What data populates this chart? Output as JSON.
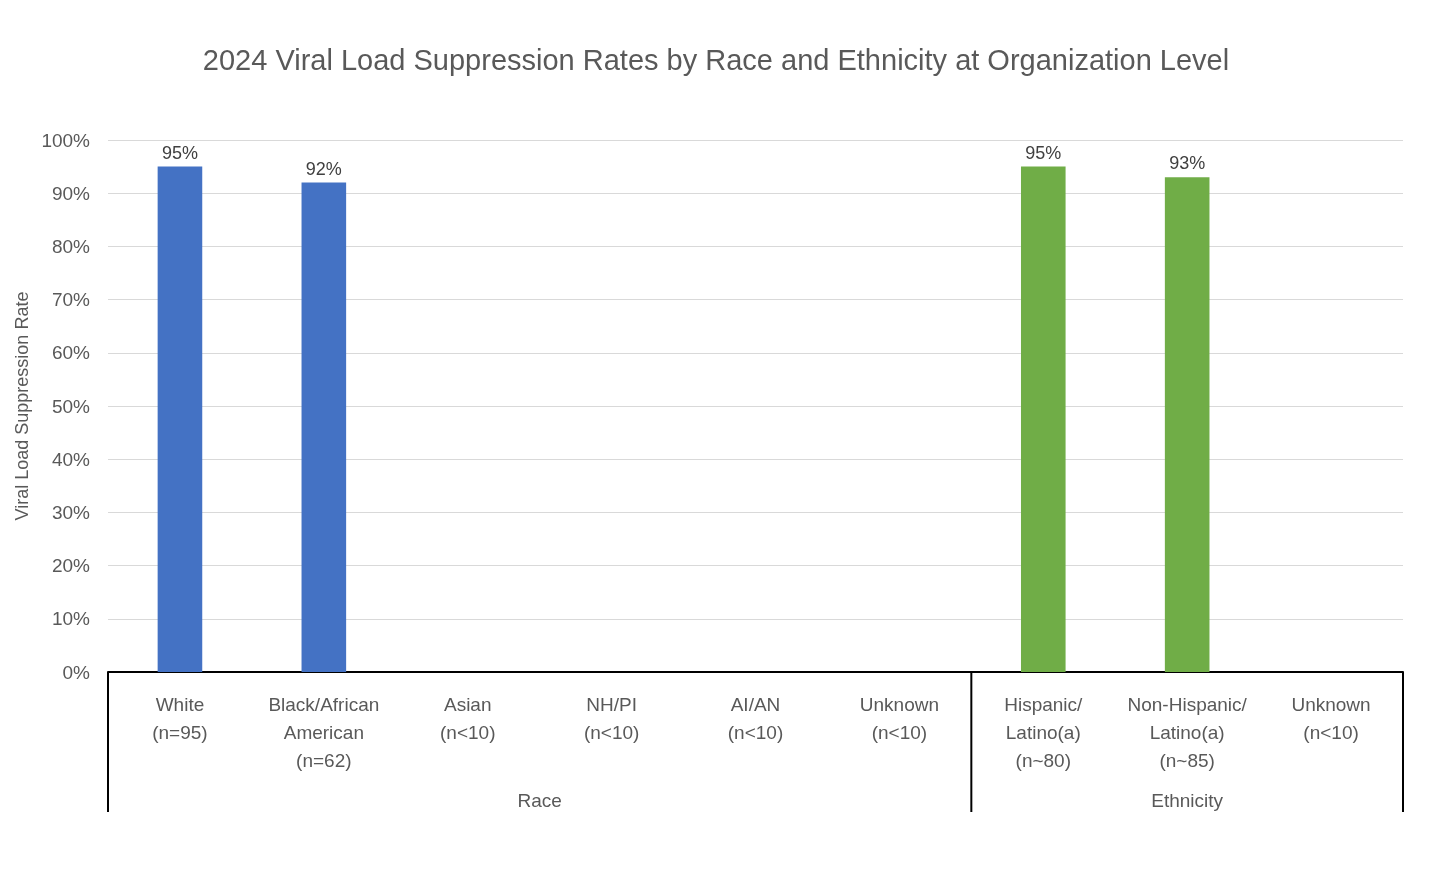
{
  "chart_data": {
    "type": "bar",
    "title": "2024 Viral Load Suppression Rates by Race and Ethnicity at Organization Level",
    "ylabel": "Viral Load Suppression Rate",
    "categories": [
      "White\n(n=95)",
      "Black/African\nAmerican\n(n=62)",
      "Asian\n(n<10)",
      "NH/PI\n(n<10)",
      "AI/AN\n(n<10)",
      "Unknown\n(n<10)",
      "Hispanic/\nLatino(a)\n(n~80)",
      "Non-Hispanic/\nLatino(a)\n(n~85)",
      "Unknown\n(n<10)"
    ],
    "values": [
      95,
      92,
      null,
      null,
      null,
      null,
      95,
      93,
      null
    ],
    "value_labels": [
      "95%",
      "92%",
      null,
      null,
      null,
      null,
      "95%",
      "93%",
      null
    ],
    "colors": [
      "#4472c4",
      "#4472c4",
      "#4472c4",
      "#4472c4",
      "#4472c4",
      "#4472c4",
      "#70ad47",
      "#70ad47",
      "#70ad47"
    ],
    "annotations": [
      "Race",
      "Ethnicity"
    ],
    "ylim": [
      0,
      100
    ],
    "yticks": [
      {
        "value": 0,
        "label": "0%"
      },
      {
        "value": 10,
        "label": "10%"
      },
      {
        "value": 20,
        "label": "20%"
      },
      {
        "value": 30,
        "label": "30%"
      },
      {
        "value": 40,
        "label": "40%"
      },
      {
        "value": 50,
        "label": "50%"
      },
      {
        "value": 60,
        "label": "60%"
      },
      {
        "value": 70,
        "label": "70%"
      },
      {
        "value": 80,
        "label": "80%"
      },
      {
        "value": 90,
        "label": "90%"
      },
      {
        "value": 100,
        "label": "100%"
      }
    ],
    "grid": "y"
  }
}
